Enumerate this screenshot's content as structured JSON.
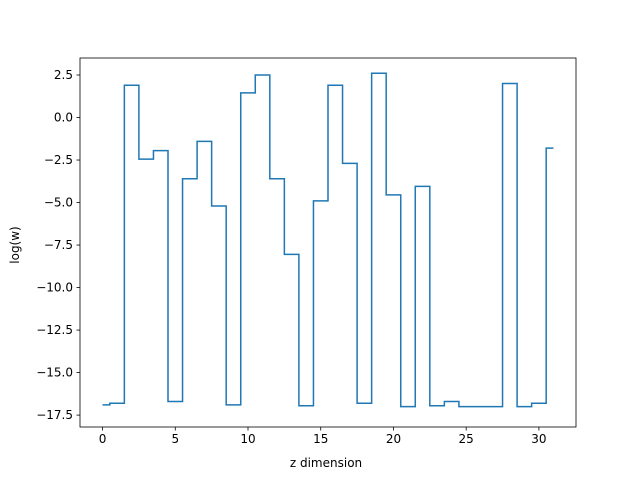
{
  "chart_data": {
    "type": "line",
    "drawstyle": "steps-mid",
    "title": "",
    "xlabel": "z dimension",
    "ylabel": "log(w)",
    "xlim": [
      -1.55,
      32.55
    ],
    "ylim": [
      -18.2,
      3.5
    ],
    "xticks": [
      0,
      5,
      10,
      15,
      20,
      25,
      30
    ],
    "xtick_labels": [
      "0",
      "5",
      "10",
      "15",
      "20",
      "25",
      "30"
    ],
    "yticks": [
      2.5,
      0.0,
      -2.5,
      -5.0,
      -7.5,
      -10.0,
      -12.5,
      -15.0,
      -17.5
    ],
    "ytick_labels": [
      "2.5",
      "0.0",
      "−2.5",
      "−5.0",
      "−7.5",
      "−10.0",
      "−12.5",
      "−15.0",
      "−17.5"
    ],
    "grid": false,
    "legend": "none",
    "line_color": "#1f77b4",
    "x": [
      0,
      1,
      2,
      3,
      4,
      5,
      6,
      7,
      8,
      9,
      10,
      11,
      12,
      13,
      14,
      15,
      16,
      17,
      18,
      19,
      20,
      21,
      22,
      23,
      24,
      25,
      26,
      27,
      28,
      29,
      30,
      31
    ],
    "y": [
      -16.9,
      -16.8,
      1.9,
      -2.45,
      -1.95,
      -16.7,
      -3.6,
      -1.4,
      -5.2,
      -16.9,
      1.45,
      2.5,
      -3.6,
      -8.05,
      -16.95,
      -4.9,
      1.9,
      -2.7,
      -16.8,
      2.6,
      -4.55,
      -17.0,
      -4.05,
      -16.95,
      -16.7,
      -17.0,
      -17.0,
      -17.0,
      2.0,
      -17.0,
      -16.8,
      -1.8
    ]
  }
}
